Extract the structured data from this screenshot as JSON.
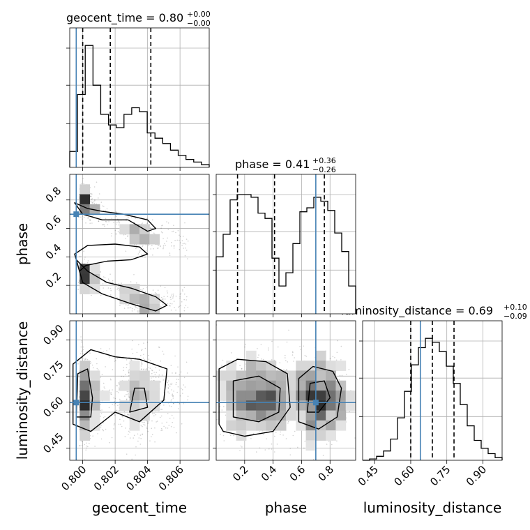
{
  "chart_data": {
    "type": "corner",
    "parameters": [
      {
        "name": "geocent_time",
        "title_value": "0.80",
        "title_plus": "+0.00",
        "title_minus": "−0.00",
        "range": [
          0.7992,
          0.8078
        ],
        "ticks": [
          0.8,
          0.802,
          0.804,
          0.806
        ],
        "tick_labels": [
          "0.800",
          "0.802",
          "0.804",
          "0.806"
        ],
        "truth": 0.7996,
        "quantiles": [
          0.8,
          0.8017,
          0.8042
        ],
        "hist": [
          0.12,
          0.55,
          0.92,
          0.62,
          0.4,
          0.32,
          0.3,
          0.4,
          0.45,
          0.42,
          0.26,
          0.22,
          0.18,
          0.13,
          0.09,
          0.06,
          0.04,
          0.02
        ]
      },
      {
        "name": "phase",
        "title_value": "0.41",
        "title_plus": "+0.36",
        "title_minus": "−0.26",
        "range": [
          0.0,
          0.98
        ],
        "ticks": [
          0.2,
          0.4,
          0.6,
          0.8
        ],
        "tick_labels": [
          "0.2",
          "0.4",
          "0.6",
          "0.8"
        ],
        "truth": 0.7,
        "quantiles": [
          0.15,
          0.41,
          0.76
        ],
        "hist": [
          0.43,
          0.6,
          0.86,
          0.9,
          0.9,
          0.88,
          0.76,
          0.72,
          0.42,
          0.21,
          0.31,
          0.53,
          0.77,
          0.8,
          0.88,
          0.85,
          0.78,
          0.61,
          0.47,
          0.21
        ]
      },
      {
        "name": "luminosity_distance",
        "title_value": "0.69",
        "title_plus": "+0.10",
        "title_minus": "−0.09",
        "range": [
          0.4,
          0.98
        ],
        "ticks": [
          0.45,
          0.6,
          0.75,
          0.9
        ],
        "tick_labels": [
          "0.45",
          "0.60",
          "0.75",
          "0.90"
        ],
        "truth": 0.64,
        "quantiles": [
          0.6,
          0.69,
          0.78
        ],
        "hist": [
          0.0,
          0.01,
          0.03,
          0.07,
          0.16,
          0.32,
          0.52,
          0.72,
          0.85,
          0.92,
          0.89,
          0.82,
          0.71,
          0.58,
          0.42,
          0.26,
          0.15,
          0.09,
          0.05,
          0.02
        ]
      }
    ],
    "pairs": [
      {
        "x": "geocent_time",
        "y": "phase"
      },
      {
        "x": "geocent_time",
        "y": "luminosity_distance"
      },
      {
        "x": "phase",
        "y": "luminosity_distance"
      }
    ],
    "truth_color": "#4682b4",
    "line_color": "#000000",
    "grid": true
  }
}
